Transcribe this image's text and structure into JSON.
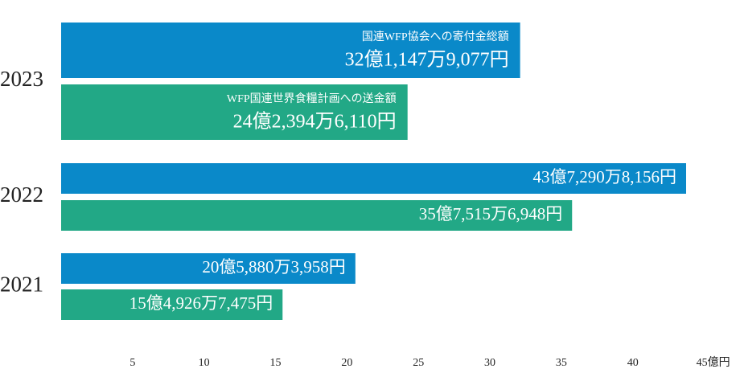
{
  "chart_data": {
    "type": "bar",
    "orientation": "horizontal",
    "categories": [
      "2023",
      "2022",
      "2021"
    ],
    "series": [
      {
        "name": "国連WFP協会への寄付金総額",
        "color": "#0a89c9",
        "values": [
          32.11479077,
          43.72908156,
          20.58803958
        ],
        "value_labels": [
          "32億1,147万9,077円",
          "43億7,290万8,156円",
          "20億5,880万3,958円"
        ]
      },
      {
        "name": "WFP国連世界食糧計画への送金額",
        "color": "#22a886",
        "values": [
          24.2394611,
          35.75156948,
          15.49267475
        ],
        "value_labels": [
          "24億2,394万6,110円",
          "35億7,515万6,948円",
          "15億4,926万7,475円"
        ]
      }
    ],
    "xlim": [
      0,
      47.5
    ],
    "xticks": [
      5,
      10,
      15,
      20,
      25,
      30,
      35,
      40,
      {
        "value": 45,
        "label": "45億円"
      }
    ],
    "grid": false
  }
}
